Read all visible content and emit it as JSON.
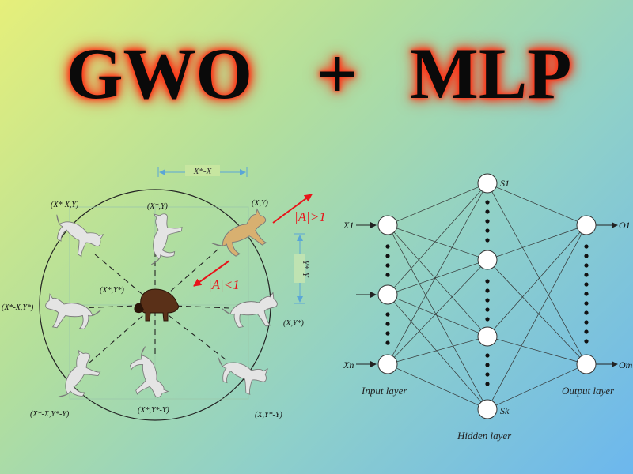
{
  "title": {
    "left": "GWO",
    "plus": "+",
    "right": "MLP"
  },
  "gwo": {
    "top_dimension": "X*-X",
    "side_dimension": "Y*-Y",
    "arrow_out_label": "|A|>1",
    "arrow_in_label": "|A|<1",
    "positions": {
      "top_left": "(X*-X,Y)",
      "top": "(X*,Y)",
      "top_right": "(X,Y)",
      "left": "(X*-X,Y*)",
      "center": "(X*,Y*)",
      "right": "(X,Y*)",
      "bottom_left": "(X*-X,Y*-Y)",
      "bottom": "(X*,Y*-Y)",
      "bottom_right": "(X,Y*-Y)"
    }
  },
  "mlp": {
    "input_top": "X1",
    "input_bottom": "Xn",
    "hidden_top": "S1",
    "hidden_bottom": "Sk",
    "output_top": "O1",
    "output_bottom": "Om",
    "input_layer_label": "Input layer",
    "hidden_layer_label": "Hidden layer",
    "output_layer_label": "Output layer"
  },
  "colors": {
    "title_text": "#0a0a0a",
    "title_glow": "#ff2a10",
    "arrow_red": "#e8141a",
    "dimension_blue": "#5aa6d6",
    "wolf_gray": "#e4e4e4",
    "wolf_alpha": "#d8b070",
    "prey_brown": "#5a3018"
  }
}
